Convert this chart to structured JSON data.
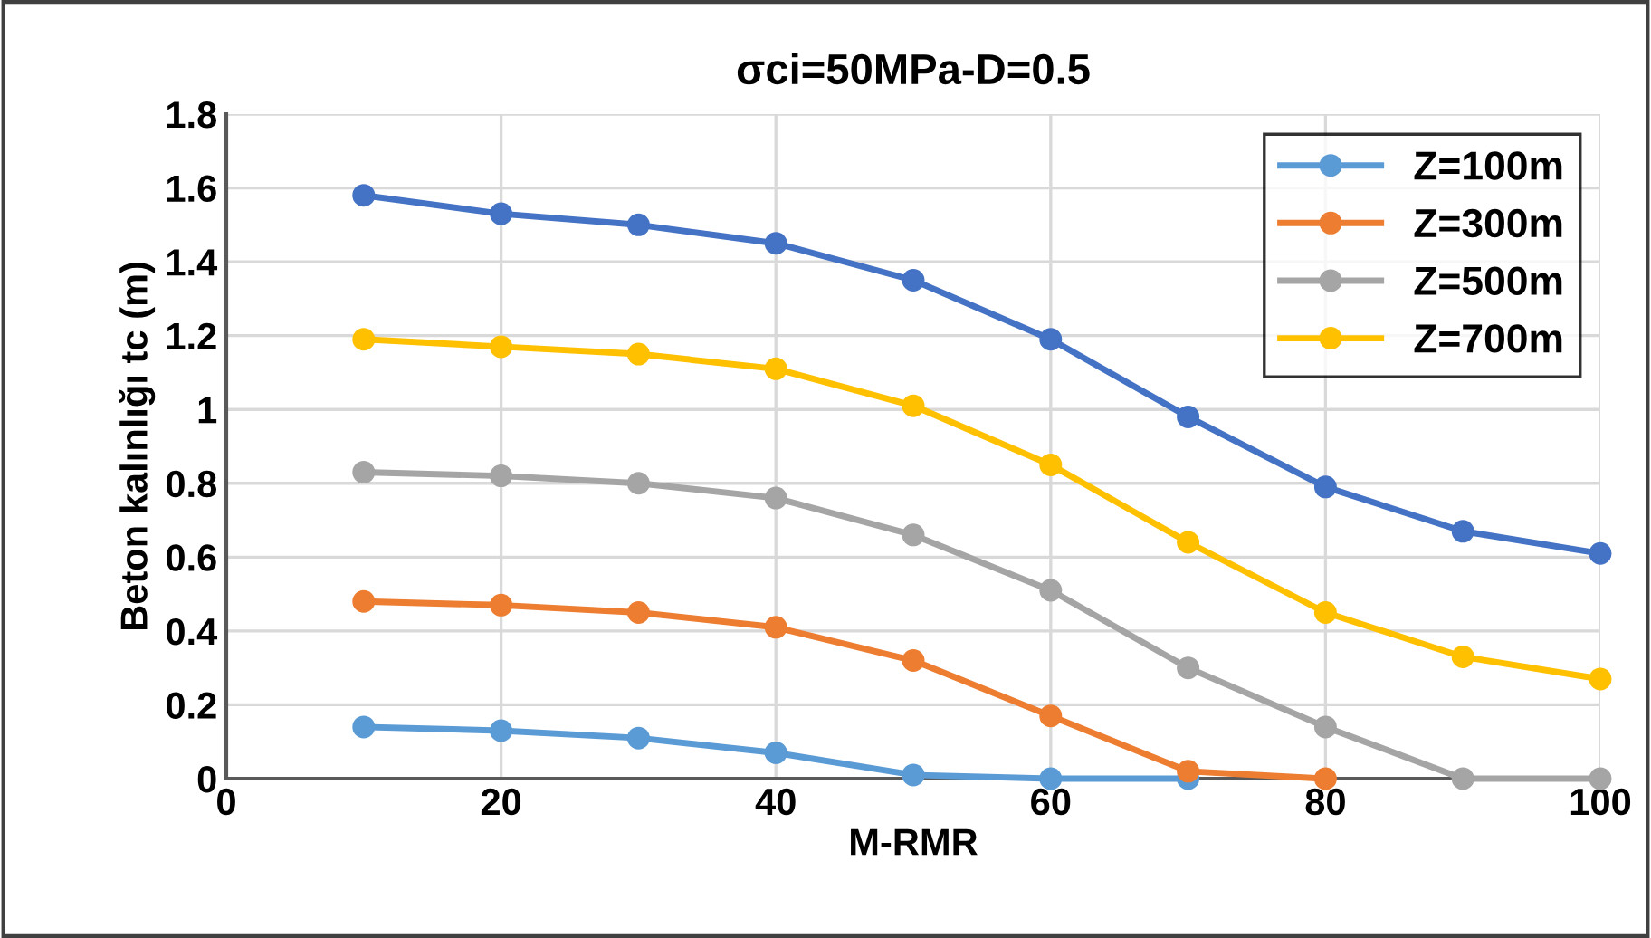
{
  "chart_data": {
    "type": "line",
    "title": "σci=50MPa-D=0.5",
    "xlabel": "M-RMR",
    "ylabel": "Beton kalınlığı tc (m)",
    "x": [
      10,
      20,
      30,
      40,
      50,
      60,
      70,
      80,
      90,
      100
    ],
    "series": [
      {
        "color": "#4472c4",
        "values": [
          1.58,
          1.53,
          1.5,
          1.45,
          1.35,
          1.19,
          0.98,
          0.79,
          0.67,
          0.61
        ]
      },
      {
        "name": "Z=100m",
        "color": "#5b9bd5",
        "values": [
          0.14,
          0.13,
          0.11,
          0.07,
          0.01,
          0,
          0,
          null,
          null,
          null
        ]
      },
      {
        "name": "Z=300m",
        "color": "#ed7d31",
        "values": [
          0.48,
          0.47,
          0.45,
          0.41,
          0.32,
          0.17,
          0.02,
          0,
          null,
          null
        ]
      },
      {
        "name": "Z=500m",
        "color": "#a5a5a5",
        "values": [
          0.83,
          0.82,
          0.8,
          0.76,
          0.66,
          0.51,
          0.3,
          0.14,
          0,
          0
        ]
      },
      {
        "name": "Z=700m",
        "color": "#ffc000",
        "values": [
          1.19,
          1.17,
          1.15,
          1.11,
          1.01,
          0.85,
          0.64,
          0.45,
          0.33,
          0.27
        ]
      }
    ],
    "xlim": [
      0,
      100
    ],
    "xticks": [
      0,
      20,
      40,
      60,
      80,
      100
    ],
    "ylim": [
      0,
      1.8
    ],
    "yticks": [
      0,
      {
        "value": 0.2,
        "label": "0.2"
      },
      {
        "value": 0.4,
        "label": "0.4"
      },
      {
        "value": 0.6,
        "label": "0.6"
      },
      {
        "value": 0.8,
        "label": "0.8"
      },
      1,
      {
        "value": 1.2,
        "label": "1.2"
      },
      {
        "value": 1.4,
        "label": "1.4"
      },
      {
        "value": 1.6,
        "label": "1.6"
      },
      {
        "value": 1.8,
        "label": "1.8"
      }
    ],
    "grid": true,
    "legend": "top right",
    "marker": "circle",
    "line_style": "solid"
  }
}
